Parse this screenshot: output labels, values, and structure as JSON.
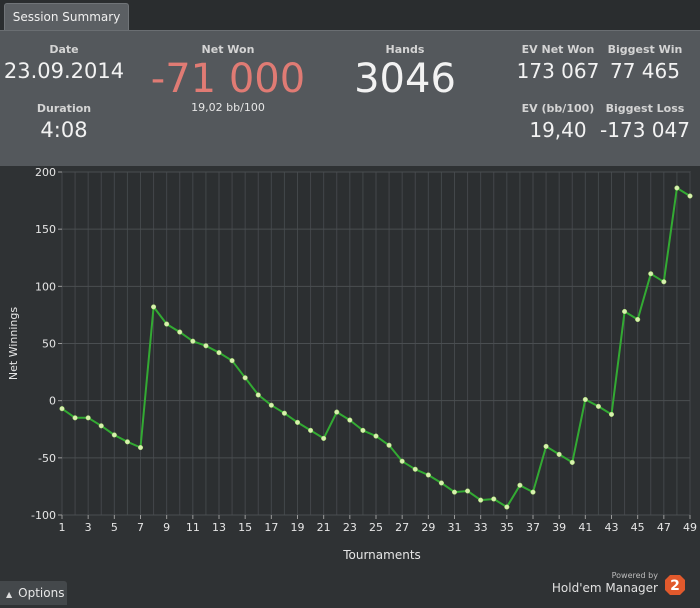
{
  "tab": {
    "label": "Session Summary"
  },
  "summary": {
    "date_label": "Date",
    "date_value": "23.09.2014",
    "duration_label": "Duration",
    "duration_value": "4:08",
    "net_won_label": "Net Won",
    "net_won_value": "-71 000",
    "net_won_sub": "19,02 bb/100",
    "hands_label": "Hands",
    "hands_value": "3046",
    "ev_net_won_label": "EV Net Won",
    "ev_net_won_value": "173 067",
    "biggest_win_label": "Biggest Win",
    "biggest_win_value": "77 465",
    "ev_bb_label": "EV (bb/100)",
    "ev_bb_value": "19,40",
    "biggest_loss_label": "Biggest Loss",
    "biggest_loss_value": "-173 047"
  },
  "colors": {
    "net_won": "#e07b74",
    "line": "#33aa33",
    "point": "#d8f0b0"
  },
  "chart_data": {
    "type": "line",
    "title": "",
    "xlabel": "Tournaments",
    "ylabel": "Net Winnings",
    "xlim": [
      1,
      49
    ],
    "ylim": [
      -100,
      200
    ],
    "x_ticks": [
      1,
      3,
      5,
      7,
      9,
      11,
      13,
      15,
      17,
      19,
      21,
      23,
      25,
      27,
      29,
      31,
      33,
      35,
      37,
      39,
      41,
      43,
      45,
      47,
      49
    ],
    "y_ticks": [
      -100,
      -50,
      0,
      50,
      100,
      150,
      200
    ],
    "grid": true,
    "series": [
      {
        "x": [
          1,
          2,
          3,
          4,
          5,
          6,
          7,
          8,
          9,
          10,
          11,
          12,
          13,
          14,
          15,
          16,
          17,
          18,
          19,
          20,
          21,
          22,
          23,
          24,
          25,
          26,
          27,
          28,
          29,
          30,
          31,
          32,
          33,
          34,
          35,
          36,
          37,
          38,
          39,
          40,
          41,
          42,
          43,
          44,
          45,
          46,
          47,
          48,
          49
        ],
        "y": [
          -7,
          -15,
          -15,
          -22,
          -30,
          -36,
          -41,
          82,
          67,
          60,
          52,
          48,
          42,
          35,
          20,
          5,
          -4,
          -11,
          -19,
          -26,
          -33,
          -10,
          -17,
          -26,
          -31,
          -39,
          -53,
          -60,
          -65,
          -72,
          -80,
          -79,
          -87,
          -86,
          -93,
          -74,
          -80,
          -40,
          -47,
          -54,
          1,
          -5,
          -12,
          78,
          71,
          111,
          104,
          186,
          179
        ]
      }
    ]
  },
  "footer": {
    "options_label": "Options",
    "powered_by": "Powered by",
    "brand_name": "Hold'em Manager",
    "brand_logo_text": "2"
  }
}
